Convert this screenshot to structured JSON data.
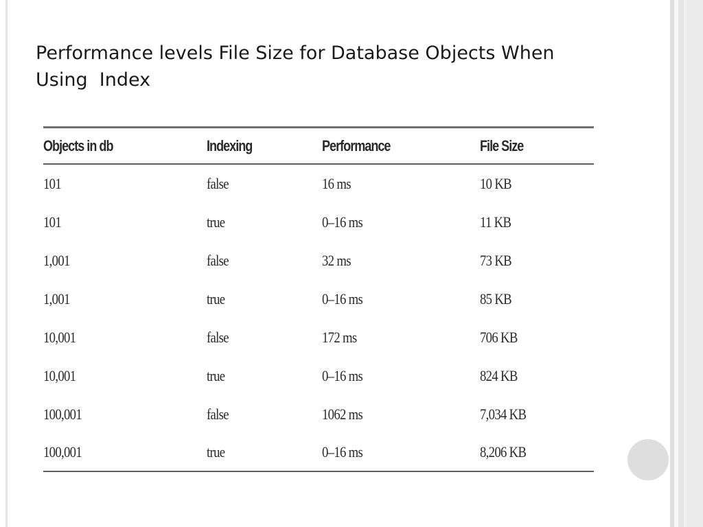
{
  "slide": {
    "title": "Performance levels File Size for Database Objects When\nUsing  Index"
  },
  "table": {
    "headers": [
      "Objects in db",
      "Indexing",
      "Performance",
      "File Size"
    ],
    "rows": [
      [
        "101",
        "false",
        "16 ms",
        "10 KB"
      ],
      [
        "101",
        "true",
        "0–16 ms",
        "11 KB"
      ],
      [
        "1,001",
        "false",
        "32 ms",
        "73 KB"
      ],
      [
        "1,001",
        "true",
        "0–16 ms",
        "85 KB"
      ],
      [
        "10,001",
        "false",
        "172 ms",
        "706 KB"
      ],
      [
        "10,001",
        "true",
        "0–16 ms",
        "824 KB"
      ],
      [
        "100,001",
        "false",
        "1062 ms",
        "7,034 KB"
      ],
      [
        "100,001",
        "true",
        "0–16 ms",
        "8,206 KB"
      ]
    ]
  }
}
